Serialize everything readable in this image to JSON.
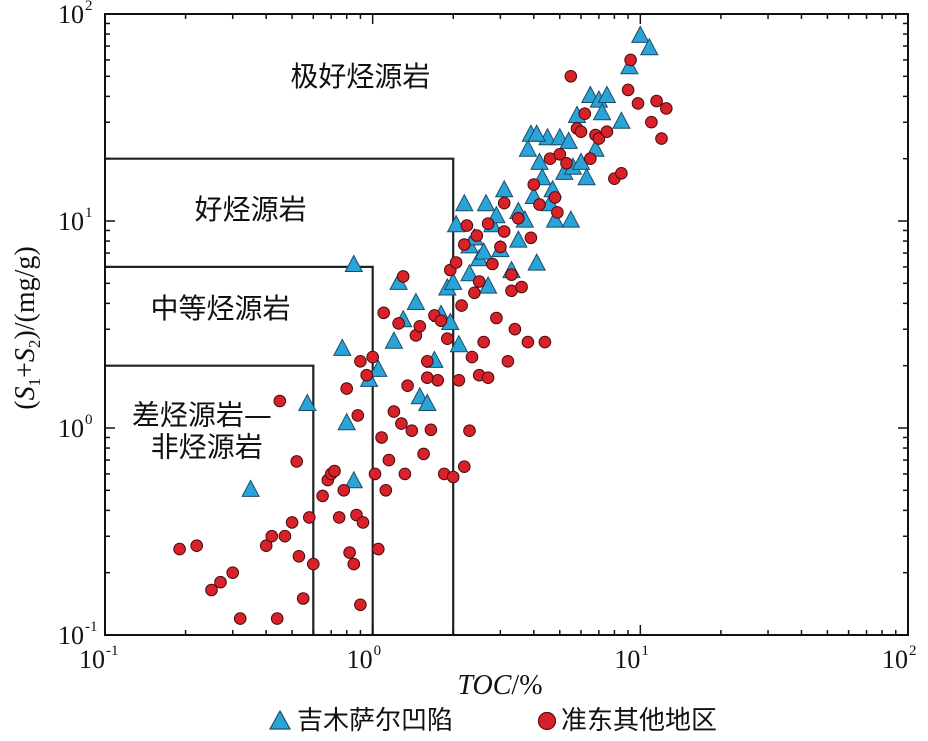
{
  "chart_data": {
    "type": "scatter",
    "x_scale": "log",
    "y_scale": "log",
    "xlim": [
      0.1,
      100
    ],
    "ylim": [
      0.1,
      100
    ],
    "x_ticks": [
      {
        "base": "10",
        "exp": "-1"
      },
      {
        "base": "10",
        "exp": "0"
      },
      {
        "base": "10",
        "exp": "1"
      },
      {
        "base": "10",
        "exp": "2"
      }
    ],
    "y_ticks": [
      {
        "base": "10",
        "exp": "-1"
      },
      {
        "base": "10",
        "exp": "0"
      },
      {
        "base": "10",
        "exp": "1"
      },
      {
        "base": "10",
        "exp": "2"
      }
    ],
    "xlabel": {
      "italic": "TOC",
      "rest": "/%"
    },
    "ylabel": {
      "open": "(",
      "s1": "S",
      "sub1": "1",
      "plus": "+",
      "s2": "S",
      "sub2": "2",
      "close": ")/(mg/g)"
    },
    "legend_placement": "bottom-center",
    "regions": [
      {
        "label": "极好烃源岩",
        "x": 0.9,
        "y": 45
      },
      {
        "label": "好烃源岩",
        "x": 0.35,
        "y": 10.2
      },
      {
        "label": "中等烃源岩",
        "x": 0.27,
        "y": 3.4
      },
      {
        "label": "差烃源岩—",
        "x": 0.23,
        "y": 1.04
      },
      {
        "label": "非烃源岩",
        "x": 0.24,
        "y": 0.73
      }
    ],
    "boundaries": [
      {
        "points": [
          [
            0.1,
            2
          ],
          [
            0.6,
            2
          ],
          [
            0.6,
            0.1
          ]
        ]
      },
      {
        "points": [
          [
            0.1,
            6
          ],
          [
            1,
            6
          ],
          [
            1,
            0.1
          ]
        ]
      },
      {
        "points": [
          [
            0.1,
            20
          ],
          [
            2,
            20
          ],
          [
            2,
            0.1
          ]
        ]
      }
    ],
    "series": [
      {
        "name": "吉木萨尔凹陷",
        "marker": "triangle",
        "color": "#29a3d8",
        "points": [
          [
            0.35,
            0.5
          ],
          [
            0.57,
            1.3
          ],
          [
            0.77,
            2.4
          ],
          [
            0.85,
            6.1
          ],
          [
            0.97,
            1.7
          ],
          [
            1.05,
            1.9
          ],
          [
            1.25,
            5
          ],
          [
            1.3,
            3.3
          ],
          [
            1.45,
            4
          ],
          [
            1.5,
            1.4
          ],
          [
            1.6,
            1.3
          ],
          [
            1.7,
            2.1
          ],
          [
            1.8,
            3.5
          ],
          [
            1.9,
            4.7
          ],
          [
            1.95,
            3.2
          ],
          [
            2.0,
            5
          ],
          [
            2.05,
            9.5
          ],
          [
            2.1,
            2.5
          ],
          [
            2.2,
            12
          ],
          [
            2.3,
            7.5
          ],
          [
            2.3,
            5.5
          ],
          [
            2.4,
            8.2
          ],
          [
            2.5,
            6.5
          ],
          [
            2.6,
            7
          ],
          [
            2.65,
            12
          ],
          [
            2.7,
            4.8
          ],
          [
            2.8,
            9.5
          ],
          [
            2.9,
            10.5
          ],
          [
            3.0,
            7.2
          ],
          [
            3.1,
            14
          ],
          [
            3.3,
            5.7
          ],
          [
            3.5,
            11
          ],
          [
            3.7,
            10
          ],
          [
            3.8,
            22
          ],
          [
            3.9,
            26
          ],
          [
            4.0,
            13
          ],
          [
            4.1,
            6.2
          ],
          [
            4.2,
            19
          ],
          [
            4.3,
            16
          ],
          [
            4.5,
            25
          ],
          [
            4.7,
            14
          ],
          [
            4.8,
            10
          ],
          [
            5.0,
            25
          ],
          [
            5.2,
            17
          ],
          [
            5.5,
            10
          ],
          [
            5.6,
            18
          ],
          [
            5.8,
            32
          ],
          [
            6.0,
            19
          ],
          [
            6.3,
            16
          ],
          [
            6.5,
            40
          ],
          [
            6.8,
            22
          ],
          [
            7.0,
            38
          ],
          [
            7.2,
            33
          ],
          [
            7.5,
            40
          ],
          [
            8.5,
            30
          ],
          [
            9.1,
            55
          ],
          [
            10.0,
            78
          ],
          [
            10.8,
            68
          ],
          [
            0.8,
            1.05
          ],
          [
            0.85,
            0.55
          ],
          [
            1.2,
            2.6
          ],
          [
            3.5,
            8
          ],
          [
            4.1,
            26
          ],
          [
            4.6,
            12
          ],
          [
            5.4,
            24
          ]
        ]
      },
      {
        "name": "准东其他地区",
        "marker": "circle",
        "color": "#d8222a",
        "points": [
          [
            0.19,
            0.26
          ],
          [
            0.22,
            0.27
          ],
          [
            0.25,
            0.165
          ],
          [
            0.27,
            0.18
          ],
          [
            0.3,
            0.2
          ],
          [
            0.32,
            0.12
          ],
          [
            0.4,
            0.27
          ],
          [
            0.42,
            0.3
          ],
          [
            0.44,
            0.12
          ],
          [
            0.45,
            1.35
          ],
          [
            0.47,
            0.3
          ],
          [
            0.5,
            0.35
          ],
          [
            0.52,
            0.69
          ],
          [
            0.53,
            0.24
          ],
          [
            0.55,
            0.15
          ],
          [
            0.58,
            0.37
          ],
          [
            0.6,
            0.22
          ],
          [
            0.65,
            0.47
          ],
          [
            0.68,
            0.56
          ],
          [
            0.7,
            0.6
          ],
          [
            0.72,
            0.62
          ],
          [
            0.75,
            0.37
          ],
          [
            0.78,
            0.5
          ],
          [
            0.8,
            1.55
          ],
          [
            0.82,
            0.25
          ],
          [
            0.85,
            0.22
          ],
          [
            0.87,
            0.38
          ],
          [
            0.88,
            1.15
          ],
          [
            0.9,
            0.14
          ],
          [
            0.92,
            0.35
          ],
          [
            0.95,
            1.8
          ],
          [
            1.0,
            2.2
          ],
          [
            1.02,
            0.6
          ],
          [
            1.05,
            0.26
          ],
          [
            1.08,
            0.9
          ],
          [
            1.12,
            0.5
          ],
          [
            1.15,
            0.7
          ],
          [
            1.2,
            1.2
          ],
          [
            1.25,
            3.2
          ],
          [
            1.28,
            1.05
          ],
          [
            1.3,
            5.4
          ],
          [
            1.32,
            0.6
          ],
          [
            1.35,
            1.6
          ],
          [
            1.4,
            0.97
          ],
          [
            1.45,
            2.8
          ],
          [
            1.5,
            3.1
          ],
          [
            1.55,
            0.75
          ],
          [
            1.6,
            2.1
          ],
          [
            1.65,
            0.98
          ],
          [
            1.7,
            3.5
          ],
          [
            1.75,
            1.7
          ],
          [
            1.8,
            3.3
          ],
          [
            1.85,
            0.6
          ],
          [
            1.9,
            2.7
          ],
          [
            1.95,
            5.8
          ],
          [
            2.0,
            0.58
          ],
          [
            2.05,
            6.3
          ],
          [
            2.1,
            1.7
          ],
          [
            2.15,
            3.9
          ],
          [
            2.2,
            7.7
          ],
          [
            2.25,
            9.5
          ],
          [
            2.3,
            0.97
          ],
          [
            2.35,
            2.2
          ],
          [
            2.4,
            4.5
          ],
          [
            2.45,
            8.5
          ],
          [
            2.5,
            1.8
          ],
          [
            2.6,
            2.6
          ],
          [
            2.7,
            1.75
          ],
          [
            2.8,
            6.2
          ],
          [
            2.9,
            3.4
          ],
          [
            3.0,
            7.5
          ],
          [
            3.1,
            8.9
          ],
          [
            3.2,
            2.1
          ],
          [
            3.3,
            4.6
          ],
          [
            3.4,
            3.0
          ],
          [
            3.5,
            10.3
          ],
          [
            3.6,
            4.8
          ],
          [
            3.8,
            2.6
          ],
          [
            3.9,
            8.3
          ],
          [
            4.0,
            15
          ],
          [
            4.2,
            12
          ],
          [
            4.4,
            2.6
          ],
          [
            4.6,
            20
          ],
          [
            4.8,
            13
          ],
          [
            5.0,
            21
          ],
          [
            5.3,
            19
          ],
          [
            5.5,
            50
          ],
          [
            5.8,
            28
          ],
          [
            6.0,
            27
          ],
          [
            6.2,
            33
          ],
          [
            6.5,
            20
          ],
          [
            6.8,
            26
          ],
          [
            7.0,
            25
          ],
          [
            7.5,
            27
          ],
          [
            8.0,
            16
          ],
          [
            8.5,
            17
          ],
          [
            9.0,
            43
          ],
          [
            9.2,
            60
          ],
          [
            9.8,
            37
          ],
          [
            11.0,
            30
          ],
          [
            11.5,
            38
          ],
          [
            12.0,
            25
          ],
          [
            12.5,
            35
          ],
          [
            2.2,
            0.65
          ],
          [
            2.5,
            5.1
          ],
          [
            3.3,
            5.5
          ],
          [
            4.9,
            11
          ],
          [
            0.9,
            2.1
          ],
          [
            1.1,
            3.6
          ],
          [
            1.6,
            1.75
          ],
          [
            2.7,
            9.7
          ],
          [
            3.1,
            12.2
          ]
        ]
      }
    ]
  }
}
